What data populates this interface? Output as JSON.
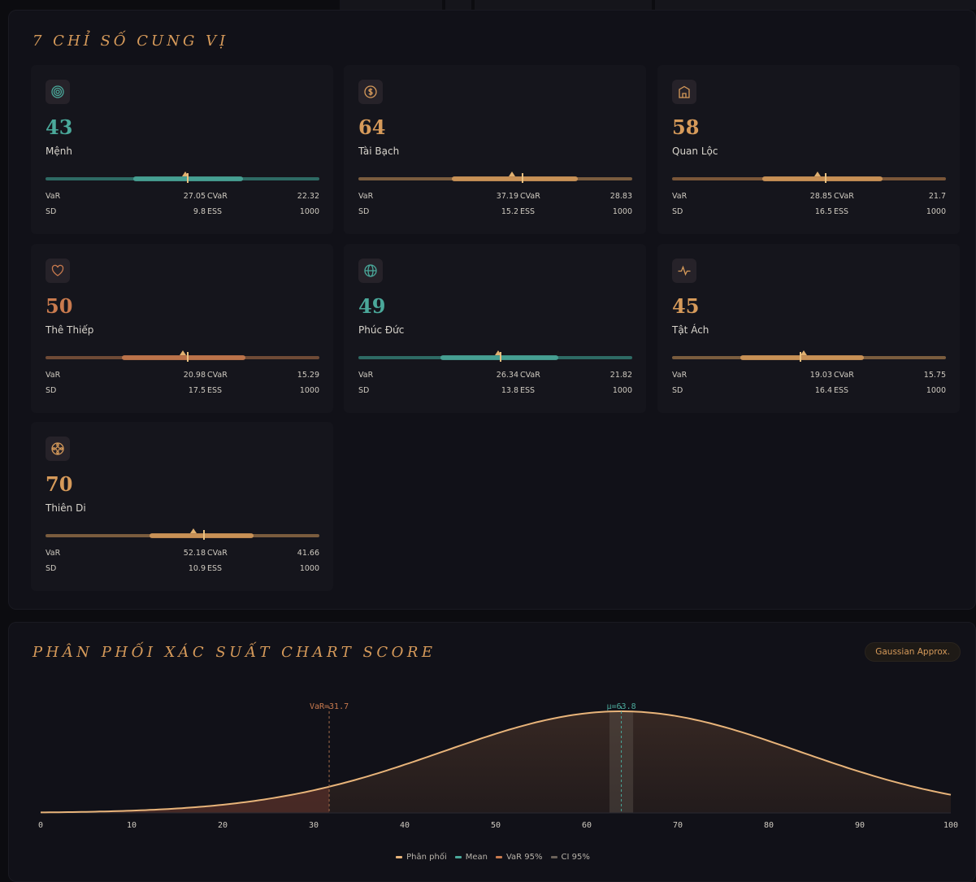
{
  "cung_panel": {
    "title": "7 CHỈ SỐ CUNG VỊ",
    "cards": [
      {
        "name": "Mệnh",
        "score": "43",
        "var": "27.05",
        "cvar": "22.32",
        "sd": "9.8",
        "ess": "1000",
        "icon": "target-icon",
        "color": "#4aa89a",
        "track_color": "#2e6a64",
        "ci": [
          0.32,
          0.72
        ],
        "mean": 0.52,
        "tri": 0.51
      },
      {
        "name": "Tài Bạch",
        "score": "64",
        "var": "37.19",
        "cvar": "28.83",
        "sd": "15.2",
        "ess": "1000",
        "icon": "coin-icon",
        "color": "#d69a5a",
        "track_color": "#7a5c3e",
        "ci": [
          0.34,
          0.8
        ],
        "mean": 0.6,
        "tri": 0.56
      },
      {
        "name": "Quan Lộc",
        "score": "58",
        "var": "28.85",
        "cvar": "21.7",
        "sd": "16.5",
        "ess": "1000",
        "icon": "building-icon",
        "color": "#d69a5a",
        "track_color": "#7a5638",
        "ci": [
          0.33,
          0.77
        ],
        "mean": 0.56,
        "tri": 0.53
      },
      {
        "name": "Thê Thiếp",
        "score": "50",
        "var": "20.98",
        "cvar": "15.29",
        "sd": "17.5",
        "ess": "1000",
        "icon": "heart-icon",
        "color": "#c97a4e",
        "track_color": "#6e4a36",
        "ci": [
          0.28,
          0.73
        ],
        "mean": 0.52,
        "tri": 0.5
      },
      {
        "name": "Phúc Đức",
        "score": "49",
        "var": "26.34",
        "cvar": "21.82",
        "sd": "13.8",
        "ess": "1000",
        "icon": "globe-icon",
        "color": "#4aa89a",
        "track_color": "#2e6a64",
        "ci": [
          0.3,
          0.73
        ],
        "mean": 0.52,
        "tri": 0.51
      },
      {
        "name": "Tật Ách",
        "score": "45",
        "var": "19.03",
        "cvar": "15.75",
        "sd": "16.4",
        "ess": "1000",
        "icon": "pulse-icon",
        "color": "#d69a5a",
        "track_color": "#7a5c3e",
        "ci": [
          0.25,
          0.7
        ],
        "mean": 0.47,
        "tri": 0.48
      },
      {
        "name": "Thiên Di",
        "score": "70",
        "var": "52.18",
        "cvar": "41.66",
        "sd": "10.9",
        "ess": "1000",
        "icon": "compass-icon",
        "color": "#d69a5a",
        "track_color": "#7a5c3e",
        "ci": [
          0.38,
          0.76
        ],
        "mean": 0.58,
        "tri": 0.54
      }
    ],
    "labels": {
      "var": "VaR",
      "cvar": "CVaR",
      "sd": "SD",
      "ess": "ESS"
    }
  },
  "chart_panel": {
    "title": "PHÂN PHỐI XÁC SUẤT CHART SCORE",
    "badge": "Gaussian Approx.",
    "legend": [
      {
        "label": "Phân phối",
        "color": "#e8b47a"
      },
      {
        "label": "Mean",
        "color": "#4aa89a"
      },
      {
        "label": "VaR 95%",
        "color": "#c97a4e"
      },
      {
        "label": "CI 95%",
        "color": "#6b625a"
      }
    ]
  },
  "chart_data": {
    "type": "area",
    "title": "PHÂN PHỐI XÁC SUẤT CHART SCORE",
    "xlabel": "",
    "ylabel": "",
    "xlim": [
      0,
      100
    ],
    "x_ticks": [
      0,
      10,
      20,
      30,
      40,
      50,
      60,
      70,
      80,
      90,
      100
    ],
    "distribution": "gaussian",
    "mean": 63.8,
    "sd": 19.5,
    "var95": 31.7,
    "ci95": [
      62.5,
      65.1
    ],
    "annotations": [
      "VaR=31.7",
      "μ=63.8"
    ],
    "series": [
      {
        "name": "Phân phối",
        "x": [
          0,
          10,
          20,
          30,
          31.7,
          40,
          50,
          60,
          63.8,
          70,
          80,
          90,
          100
        ],
        "y": [
          0.0048,
          0.01,
          0.0163,
          0.0212,
          0.0225,
          0.0277,
          0.0347,
          0.0399,
          0.0405,
          0.0386,
          0.0313,
          0.0209,
          0.0118
        ]
      }
    ]
  }
}
